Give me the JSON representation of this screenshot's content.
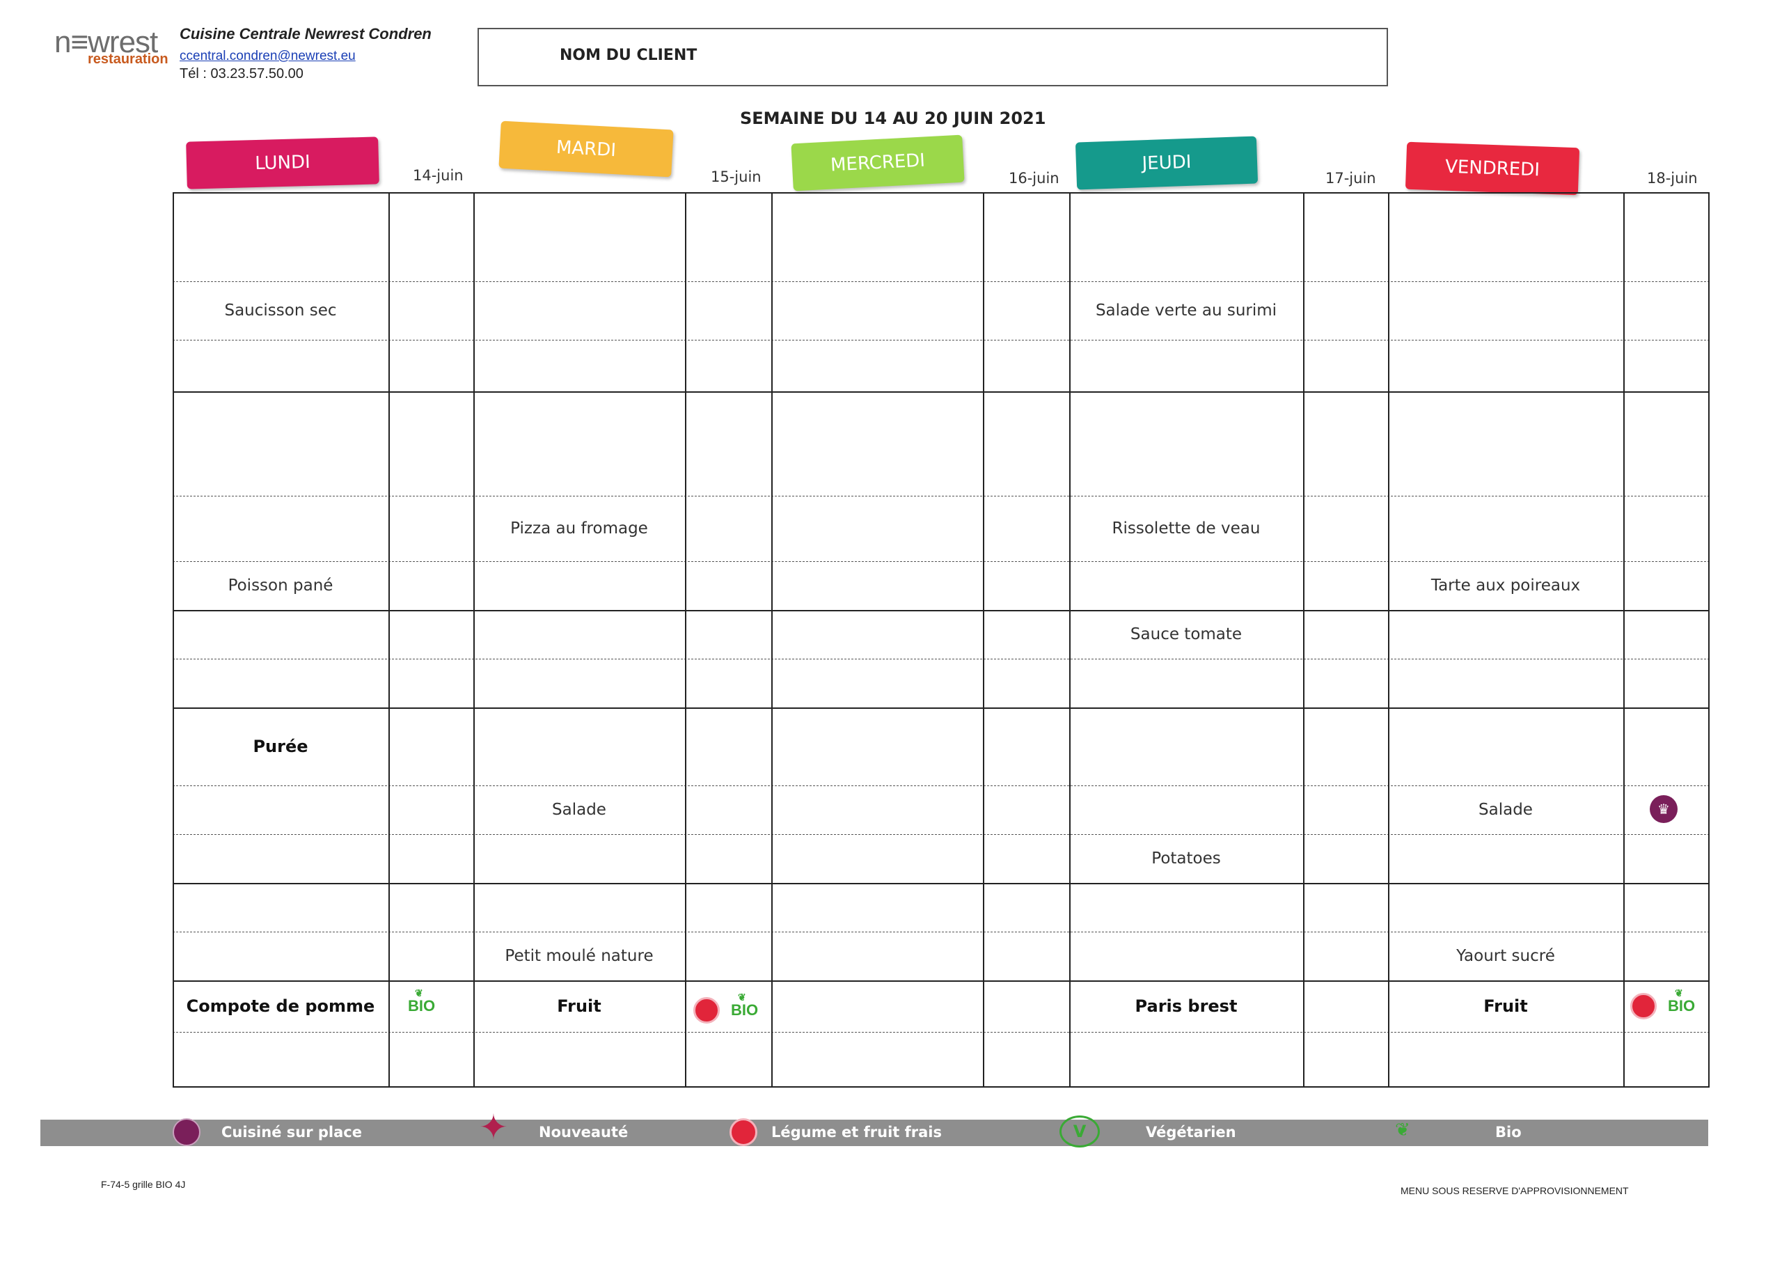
{
  "header": {
    "logo_main": "n≡wrest",
    "logo_sub": "restauration",
    "org_name": "Cuisine Centrale Newrest Condren",
    "email": "ccentral.condren@newrest.eu",
    "phone": "Tél : 03.23.57.50.00",
    "client_label": "NOM DU CLIENT",
    "week_title": "SEMAINE DU 14 AU 20 JUIN 2021"
  },
  "days": [
    {
      "label": "LUNDI",
      "date": "14-juin",
      "color": "#d81b60"
    },
    {
      "label": "MARDI",
      "date": "15-juin",
      "color": "#f6b93b"
    },
    {
      "label": "MERCREDI",
      "date": "16-juin",
      "color": "#9bd84a"
    },
    {
      "label": "JEUDI",
      "date": "17-juin",
      "color": "#159a8c"
    },
    {
      "label": "VENDREDI",
      "date": "18-juin",
      "color": "#e8283f"
    }
  ],
  "menu": {
    "lundi": {
      "entree": "Saucisson sec",
      "plat": "Poisson pané",
      "accompagnement": "Purée",
      "dessert": "Compote de pomme"
    },
    "mardi": {
      "entree": "Pizza au fromage",
      "accompagnement": "Salade",
      "laitage": "Petit moulé nature",
      "dessert": "Fruit"
    },
    "jeudi": {
      "entree": "Salade verte au surimi",
      "plat": "Rissolette de veau",
      "sauce": "Sauce tomate",
      "accompagnement": "Potatoes",
      "dessert": "Paris brest"
    },
    "vendredi": {
      "plat": "Tarte aux poireaux",
      "accompagnement": "Salade",
      "laitage": "Yaourt sucré",
      "dessert": "Fruit"
    }
  },
  "icons": {
    "bio_label": "BIO",
    "chef_glyph": "♛"
  },
  "legend": {
    "items": [
      {
        "label": "Cuisiné sur place",
        "icon": "chef-hat-icon"
      },
      {
        "label": "Nouveauté",
        "icon": "star-icon"
      },
      {
        "label": "Légume et fruit frais",
        "icon": "apple-icon"
      },
      {
        "label": "Végétarien",
        "icon": "veg-icon"
      },
      {
        "label": "Bio",
        "icon": "bio-leaf-icon"
      }
    ],
    "veg_glyph": "V",
    "star_glyph": "✦",
    "bio_glyph": "❦"
  },
  "footer": {
    "left": "F-74-5 grille BIO 4J",
    "right": "MENU SOUS RESERVE D'APPROVISIONNEMENT"
  }
}
